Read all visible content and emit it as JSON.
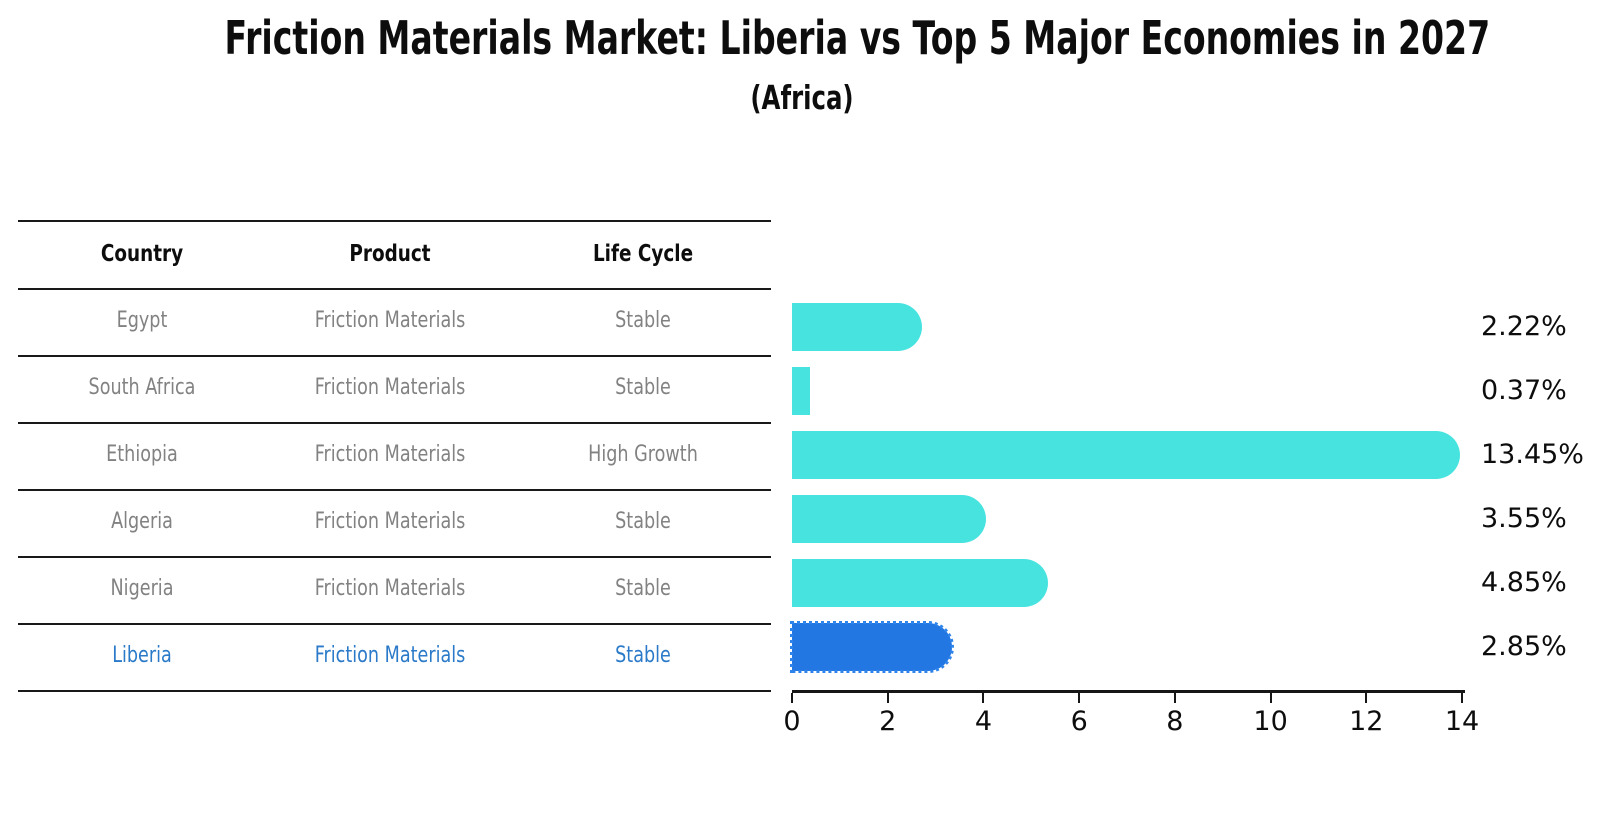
{
  "title": "Friction Materials Market: Liberia vs Top 5 Major Economies in 2027",
  "subtitle": "(Africa)",
  "colors": {
    "bar_default": "#47E3DF",
    "bar_highlight": "#2277E2",
    "highlight_row_text": "#2A7AC9",
    "row_text": "#828282",
    "heading_text": "#0d0d0d"
  },
  "table": {
    "headers": [
      "Country",
      "Product",
      "Life Cycle"
    ],
    "rows": [
      {
        "country": "Egypt",
        "product": "Friction Materials",
        "life_cycle": "Stable",
        "highlight": false
      },
      {
        "country": "South Africa",
        "product": "Friction Materials",
        "life_cycle": "Stable",
        "highlight": false
      },
      {
        "country": "Ethiopia",
        "product": "Friction Materials",
        "life_cycle": "High Growth",
        "highlight": false
      },
      {
        "country": "Algeria",
        "product": "Friction Materials",
        "life_cycle": "Stable",
        "highlight": false
      },
      {
        "country": "Nigeria",
        "product": "Friction Materials",
        "life_cycle": "Stable",
        "highlight": false
      },
      {
        "country": "Liberia",
        "product": "Friction Materials",
        "life_cycle": "Stable",
        "highlight": true
      }
    ]
  },
  "chart_data": {
    "type": "bar",
    "orientation": "horizontal",
    "title": "Friction Materials Market: Liberia vs Top 5 Major Economies in 2027",
    "subtitle": "(Africa)",
    "categories": [
      "Egypt",
      "South Africa",
      "Ethiopia",
      "Algeria",
      "Nigeria",
      "Liberia"
    ],
    "values": [
      2.22,
      0.37,
      13.45,
      3.55,
      4.85,
      2.85
    ],
    "value_labels": [
      "2.22%",
      "0.37%",
      "13.45%",
      "3.55%",
      "4.85%",
      "2.85%"
    ],
    "highlight_index": 5,
    "xlim": [
      0,
      14
    ],
    "xticks": [
      0,
      2,
      4,
      6,
      8,
      10,
      12,
      14
    ],
    "grid": false,
    "legend": false
  }
}
